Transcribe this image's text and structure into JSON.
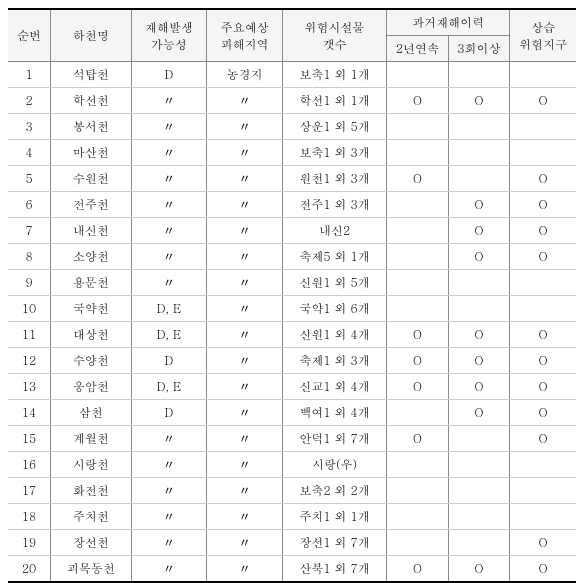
{
  "table": {
    "headers": {
      "seq": "순번",
      "river": "하천명",
      "possibility": "재해발생\n가능성",
      "area": "주요예상\n피해지역",
      "facilities": "위험시설물\n갯수",
      "history_group": "과거재해이력",
      "history_2yr": "2년연속",
      "history_3plus": "3회이상",
      "habitual": "상습\n위험지구"
    },
    "ditto": "〃",
    "rows": [
      {
        "seq": "1",
        "river": "석탑천",
        "poss": "D",
        "area": "농경지",
        "fac": "보축1 외 1개",
        "h2": "",
        "h3": "",
        "hab": ""
      },
      {
        "seq": "2",
        "river": "학선천",
        "poss": "〃",
        "area": "〃",
        "fac": "학선1 외 1개",
        "h2": "O",
        "h3": "O",
        "hab": "O"
      },
      {
        "seq": "3",
        "river": "봉서천",
        "poss": "〃",
        "area": "〃",
        "fac": "상운1 외 5개",
        "h2": "",
        "h3": "",
        "hab": ""
      },
      {
        "seq": "4",
        "river": "마산천",
        "poss": "〃",
        "area": "〃",
        "fac": "보축1 외 3개",
        "h2": "",
        "h3": "",
        "hab": ""
      },
      {
        "seq": "5",
        "river": "수원천",
        "poss": "〃",
        "area": "〃",
        "fac": "원천1 외 3개",
        "h2": "O",
        "h3": "",
        "hab": "O"
      },
      {
        "seq": "6",
        "river": "전주천",
        "poss": "〃",
        "area": "〃",
        "fac": "전주1 외 3개",
        "h2": "",
        "h3": "O",
        "hab": "O"
      },
      {
        "seq": "7",
        "river": "내신천",
        "poss": "〃",
        "area": "〃",
        "fac": "내신2",
        "h2": "",
        "h3": "O",
        "hab": "O"
      },
      {
        "seq": "8",
        "river": "소양천",
        "poss": "〃",
        "area": "〃",
        "fac": "축제5 외 1개",
        "h2": "",
        "h3": "O",
        "hab": "O"
      },
      {
        "seq": "9",
        "river": "용문천",
        "poss": "〃",
        "area": "〃",
        "fac": "신원1 외 5개",
        "h2": "",
        "h3": "",
        "hab": ""
      },
      {
        "seq": "10",
        "river": "국약천",
        "poss": "D, E",
        "area": "〃",
        "fac": "국약1 외 6개",
        "h2": "",
        "h3": "",
        "hab": ""
      },
      {
        "seq": "11",
        "river": "대상천",
        "poss": "D, E",
        "area": "〃",
        "fac": "신원1 외 4개",
        "h2": "O",
        "h3": "O",
        "hab": "O"
      },
      {
        "seq": "12",
        "river": "수양천",
        "poss": "D",
        "area": "〃",
        "fac": "축제1 외 3개",
        "h2": "O",
        "h3": "O",
        "hab": "O"
      },
      {
        "seq": "13",
        "river": "웅암천",
        "poss": "D, E",
        "area": "〃",
        "fac": "신교1 외 4개",
        "h2": "O",
        "h3": "O",
        "hab": "O"
      },
      {
        "seq": "14",
        "river": "삼천",
        "poss": "D",
        "area": "〃",
        "fac": "백여1 외 4개",
        "h2": "",
        "h3": "O",
        "hab": "O"
      },
      {
        "seq": "15",
        "river": "계월천",
        "poss": "〃",
        "area": "〃",
        "fac": "안덕1 외 7개",
        "h2": "O",
        "h3": "",
        "hab": "O"
      },
      {
        "seq": "16",
        "river": "시랑천",
        "poss": "〃",
        "area": "〃",
        "fac": "시랑(우)",
        "h2": "",
        "h3": "",
        "hab": ""
      },
      {
        "seq": "17",
        "river": "화전천",
        "poss": "〃",
        "area": "〃",
        "fac": "보축2 외 2개",
        "h2": "",
        "h3": "",
        "hab": ""
      },
      {
        "seq": "18",
        "river": "주치천",
        "poss": "〃",
        "area": "〃",
        "fac": "주치1 외 1개",
        "h2": "",
        "h3": "",
        "hab": ""
      },
      {
        "seq": "19",
        "river": "장선천",
        "poss": "〃",
        "area": "〃",
        "fac": "장선1 외 7개",
        "h2": "",
        "h3": "",
        "hab": "O"
      },
      {
        "seq": "20",
        "river": "괴목동천",
        "poss": "〃",
        "area": "〃",
        "fac": "산북1 외 7개",
        "h2": "O",
        "h3": "O",
        "hab": "O"
      }
    ]
  }
}
